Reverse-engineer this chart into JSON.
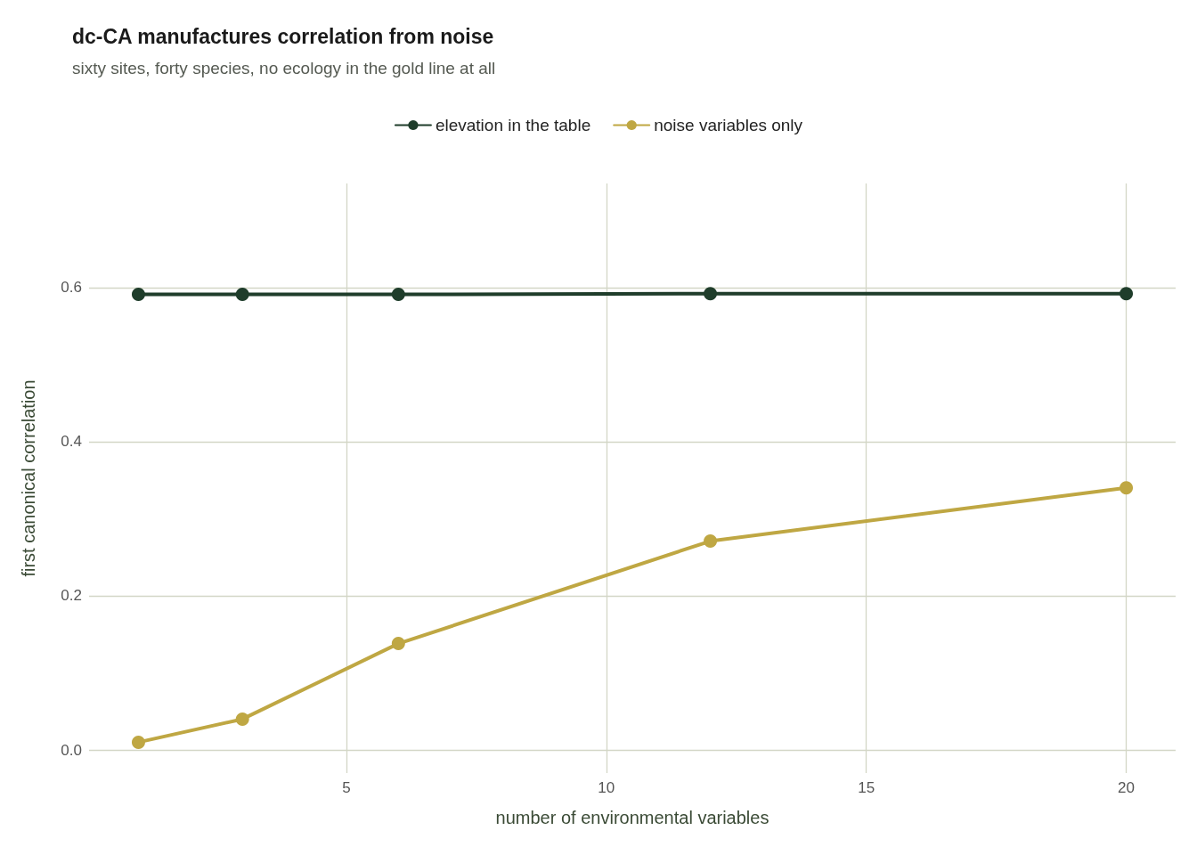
{
  "chart_data": {
    "type": "line",
    "title": "dc-CA manufactures correlation from noise",
    "subtitle": "sixty sites, forty species, no ecology in the gold line at all",
    "xlabel": "number of environmental variables",
    "ylabel": "first canonical correlation",
    "x": [
      1,
      3,
      6,
      12,
      20
    ],
    "series": [
      {
        "name": "elevation in the table",
        "color": "#1f3d2b",
        "values": [
          0.591,
          0.591,
          0.591,
          0.592,
          0.592
        ]
      },
      {
        "name": "noise variables only",
        "color": "#bfa743",
        "values": [
          0.01,
          0.04,
          0.138,
          0.271,
          0.34
        ]
      }
    ],
    "xlim": [
      0.05,
      20.95
    ],
    "xticks": [
      5,
      10,
      15,
      20
    ],
    "ylim": [
      -0.03,
      0.735
    ],
    "yticks": [
      {
        "value": 0,
        "label": "0.0"
      },
      {
        "value": 0.2,
        "label": "0.2"
      },
      {
        "value": 0.4,
        "label": "0.4"
      },
      {
        "value": 0.6,
        "label": "0.6"
      }
    ],
    "grid": true,
    "legend": "top",
    "marker": "circle",
    "line_style": "solid"
  }
}
